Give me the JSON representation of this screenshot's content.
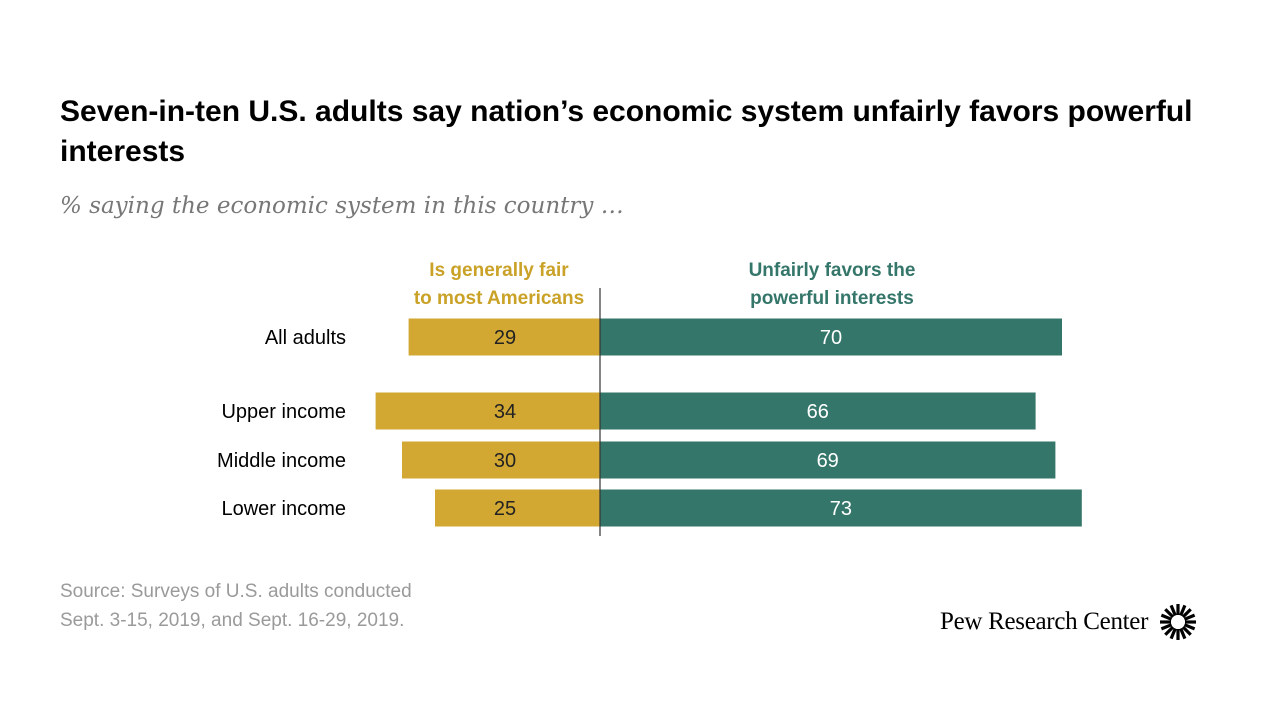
{
  "title": "Seven-in-ten U.S. adults say nation’s economic system unfairly favors powerful interests",
  "subtitle": "% saying the economic system in this country …",
  "source": {
    "line1": "Source: Surveys of U.S. adults conducted",
    "line2": "Sept. 3-15, 2019, and Sept. 16-29, 2019."
  },
  "brand": {
    "name": "Pew Research Center",
    "logo_icon": "sunburst-icon"
  },
  "colors": {
    "fair": "#D2A833",
    "unfair": "#35766A",
    "fair_header": "#C9A227",
    "unfair_header": "#35766A"
  },
  "chart_data": {
    "type": "bar",
    "orientation": "horizontal-diverging",
    "categories": [
      "All adults",
      "Upper income",
      "Middle income",
      "Lower income"
    ],
    "series": [
      {
        "name": "Is generally fair to most Americans",
        "label_lines": [
          "Is generally fair",
          "to most Americans"
        ],
        "values": [
          29,
          34,
          30,
          25
        ]
      },
      {
        "name": "Unfairly favors the powerful interests",
        "label_lines": [
          "Unfairly favors the",
          "powerful interests"
        ],
        "values": [
          70,
          66,
          69,
          73
        ]
      }
    ],
    "legend_placement": "top",
    "grid": false
  }
}
